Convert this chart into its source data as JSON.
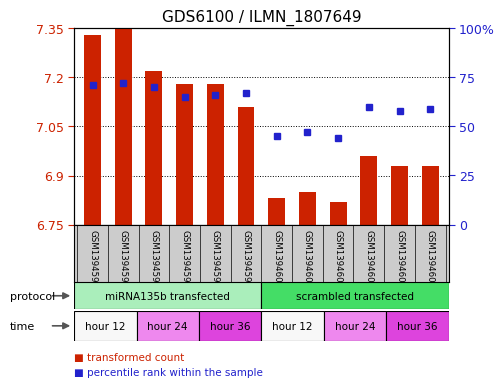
{
  "title": "GDS6100 / ILMN_1807649",
  "samples": [
    "GSM1394594",
    "GSM1394595",
    "GSM1394596",
    "GSM1394597",
    "GSM1394598",
    "GSM1394599",
    "GSM1394600",
    "GSM1394601",
    "GSM1394602",
    "GSM1394603",
    "GSM1394604",
    "GSM1394605"
  ],
  "transformed_count": [
    7.33,
    7.35,
    7.22,
    7.18,
    7.18,
    7.11,
    6.83,
    6.85,
    6.82,
    6.96,
    6.93,
    6.93
  ],
  "percentile_rank": [
    71,
    72,
    70,
    65,
    66,
    67,
    45,
    47,
    44,
    60,
    58,
    59
  ],
  "ylim_left": [
    6.75,
    7.35
  ],
  "ylim_right": [
    0,
    100
  ],
  "yticks_left": [
    6.75,
    6.9,
    7.05,
    7.2,
    7.35
  ],
  "yticks_right": [
    0,
    25,
    50,
    75,
    100
  ],
  "ytick_labels_right": [
    "0",
    "25",
    "50",
    "75",
    "100%"
  ],
  "bar_color": "#cc2200",
  "dot_color": "#2222cc",
  "bar_baseline": 6.75,
  "protocol_groups": [
    {
      "label": "miRNA135b transfected",
      "start": 0,
      "end": 6,
      "color": "#aaeebb"
    },
    {
      "label": "scrambled transfected",
      "start": 6,
      "end": 12,
      "color": "#44dd66"
    }
  ],
  "time_groups": [
    {
      "label": "hour 12",
      "start": 0,
      "end": 2,
      "color": "#f8f8f8"
    },
    {
      "label": "hour 24",
      "start": 2,
      "end": 4,
      "color": "#ee88ee"
    },
    {
      "label": "hour 36",
      "start": 4,
      "end": 6,
      "color": "#dd44dd"
    },
    {
      "label": "hour 12",
      "start": 6,
      "end": 8,
      "color": "#f8f8f8"
    },
    {
      "label": "hour 24",
      "start": 8,
      "end": 10,
      "color": "#ee88ee"
    },
    {
      "label": "hour 36",
      "start": 10,
      "end": 12,
      "color": "#dd44dd"
    }
  ],
  "legend_items": [
    {
      "label": "transformed count",
      "color": "#cc2200"
    },
    {
      "label": "percentile rank within the sample",
      "color": "#2222cc"
    }
  ],
  "gridline_color": "#000000",
  "axis_color_left": "#cc2200",
  "axis_color_right": "#2222cc",
  "bg_color": "#ffffff",
  "sample_bg": "#cccccc",
  "title_fontsize": 11,
  "tick_fontsize": 9,
  "label_fontsize": 8
}
